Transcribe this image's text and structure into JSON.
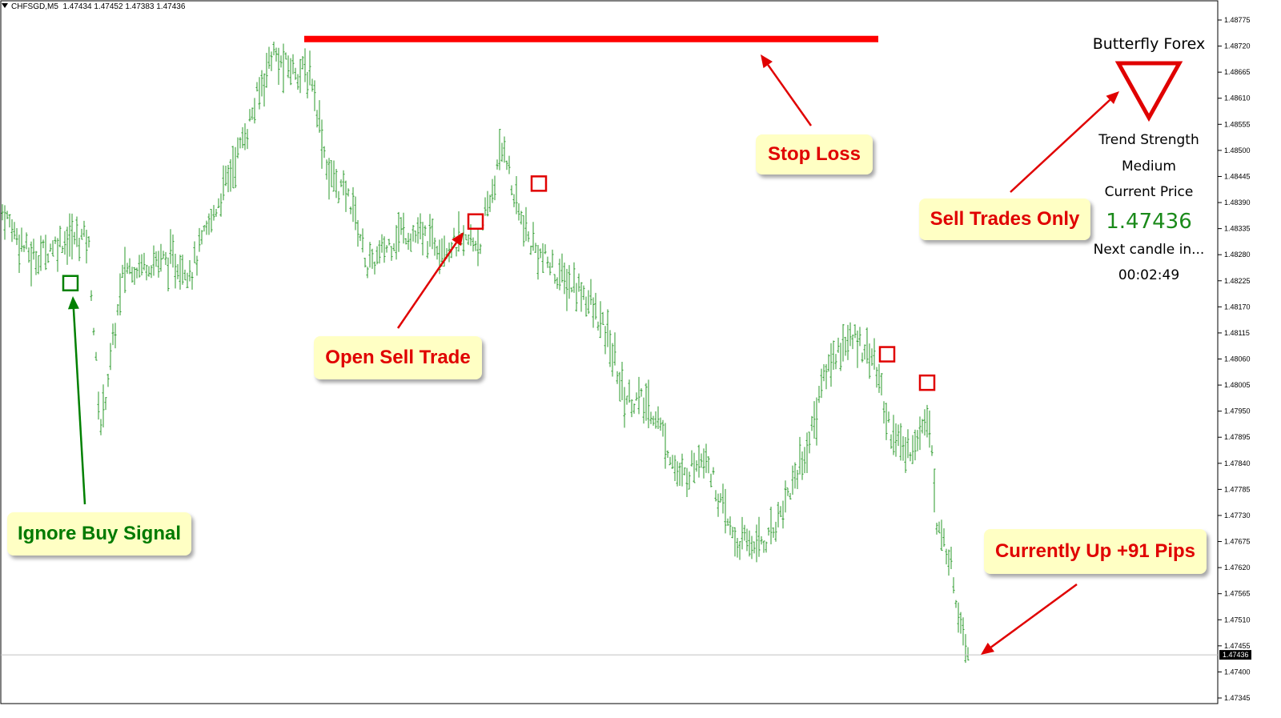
{
  "window": {
    "symbol": "CHFSGD,M5",
    "ohlc": "1.47434 1.47452 1.47383 1.47436"
  },
  "price_axis": {
    "ticks": [
      "1.48775",
      "1.48720",
      "1.48665",
      "1.48610",
      "1.48555",
      "1.48500",
      "1.48445",
      "1.48390",
      "1.48335",
      "1.48280",
      "1.48225",
      "1.48170",
      "1.48115",
      "1.48060",
      "1.48005",
      "1.47950",
      "1.47895",
      "1.47840",
      "1.47785",
      "1.47730",
      "1.47675",
      "1.47620",
      "1.47565",
      "1.47510",
      "1.47455",
      "1.47400",
      "1.47345"
    ],
    "current_price_label": "1.47436",
    "range": [
      1.4734,
      1.4879
    ]
  },
  "indicator_panel": {
    "title": "Butterfly Forex",
    "signal_icon": "down-triangle-icon",
    "trend_label": "Trend Strength",
    "trend_value": "Medium",
    "price_label": "Current Price",
    "price_value": "1.47436",
    "countdown_label": "Next candle in...",
    "countdown_value": "00:02:49"
  },
  "annotations": {
    "stop_loss": "Stop Loss",
    "sell_trades_only": "Sell Trades Only",
    "open_sell_trade": "Open Sell Trade",
    "ignore_buy_signal": "Ignore Buy Signal",
    "currently_up": "Currently Up +91 Pips"
  },
  "colors": {
    "bar": "#2a9a2a",
    "sell_marker": "#e00000",
    "buy_marker": "#008000",
    "stop_loss_line": "#ff0000",
    "callout_bg": "#ffffc4",
    "price_up_text": "#1a8a1a"
  },
  "chart_data": {
    "type": "ohlc",
    "stop_loss_price": 1.48735,
    "current_price": 1.47436,
    "signals": [
      {
        "type": "buy",
        "price": 1.4822
      },
      {
        "type": "sell",
        "price": 1.4835
      },
      {
        "type": "sell",
        "price": 1.4843
      },
      {
        "type": "sell",
        "price": 1.4807
      },
      {
        "type": "sell",
        "price": 1.4801
      }
    ],
    "path_points": [
      [
        0,
        1.4838
      ],
      [
        40,
        1.4827
      ],
      [
        75,
        1.4831
      ],
      [
        110,
        1.4832
      ],
      [
        125,
        1.4791
      ],
      [
        155,
        1.4825
      ],
      [
        200,
        1.4827
      ],
      [
        240,
        1.4825
      ],
      [
        270,
        1.4838
      ],
      [
        310,
        1.4855
      ],
      [
        340,
        1.4871
      ],
      [
        350,
        1.4868
      ],
      [
        375,
        1.4867
      ],
      [
        390,
        1.4865
      ],
      [
        410,
        1.4845
      ],
      [
        440,
        1.4839
      ],
      [
        460,
        1.4825
      ],
      [
        500,
        1.4833
      ],
      [
        560,
        1.483
      ],
      [
        600,
        1.4831
      ],
      [
        630,
        1.4852
      ],
      [
        640,
        1.4841
      ],
      [
        660,
        1.4831
      ],
      [
        700,
        1.4823
      ],
      [
        730,
        1.482
      ],
      [
        760,
        1.481
      ],
      [
        780,
        1.4798
      ],
      [
        800,
        1.4797
      ],
      [
        820,
        1.4794
      ],
      [
        850,
        1.478
      ],
      [
        880,
        1.4787
      ],
      [
        900,
        1.4775
      ],
      [
        920,
        1.4767
      ],
      [
        960,
        1.4768
      ],
      [
        990,
        1.478
      ],
      [
        1010,
        1.4788
      ],
      [
        1030,
        1.4803
      ],
      [
        1050,
        1.4809
      ],
      [
        1070,
        1.481
      ],
      [
        1090,
        1.4807
      ],
      [
        1110,
        1.4792
      ],
      [
        1130,
        1.4786
      ],
      [
        1150,
        1.479
      ],
      [
        1160,
        1.4797
      ],
      [
        1170,
        1.477
      ],
      [
        1185,
        1.4765
      ],
      [
        1195,
        1.4755
      ],
      [
        1205,
        1.4748
      ],
      [
        1210,
        1.4744
      ]
    ]
  }
}
